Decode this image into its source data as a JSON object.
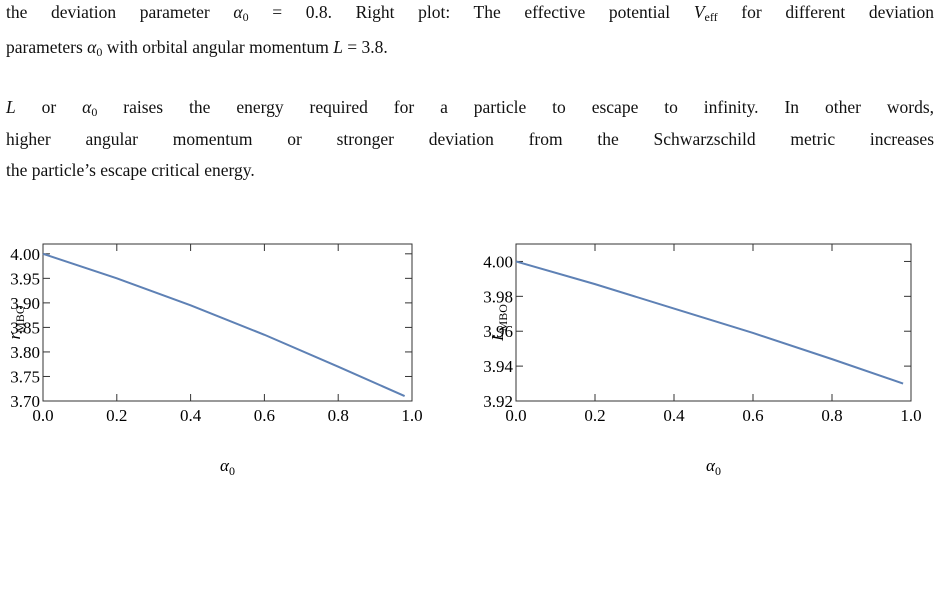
{
  "caption": {
    "lines": [
      [
        "the deviation parameter ",
        "α",
        "0",
        " = 0.8. Right plot: The effective potential ",
        "V",
        "eff",
        " for different deviation"
      ],
      [
        "parameters ",
        "α",
        "0",
        " with orbital angular momentum ",
        "L",
        " = 3.8."
      ]
    ]
  },
  "paragraph": {
    "lines": [
      [
        "L",
        " or ",
        "α",
        "0",
        " raises the energy required for a particle to escape to infinity.  In other words,"
      ],
      [
        "higher angular momentum or stronger deviation from the Schwarzschild metric increases"
      ],
      [
        "the particle’s escape critical energy."
      ]
    ]
  },
  "chart_data": [
    {
      "type": "line",
      "xlabel": [
        "α",
        "0"
      ],
      "ylabel": [
        "r",
        "MBO"
      ],
      "x": [
        0,
        0.2,
        0.4,
        0.6,
        0.8,
        0.98
      ],
      "series": [
        {
          "color": "#5e81b5",
          "values": [
            4.0,
            3.95,
            3.895,
            3.835,
            3.77,
            3.71
          ]
        }
      ],
      "xlim": [
        0,
        1
      ],
      "ylim": [
        3.7,
        4.02
      ],
      "xticks": [
        {
          "value": 0,
          "label": "0.0"
        },
        0.2,
        0.4,
        0.6,
        0.8,
        {
          "value": 1,
          "label": "1.0"
        }
      ],
      "yticks": [
        {
          "value": 3.7,
          "label": "3.70"
        },
        3.75,
        {
          "value": 3.8,
          "label": "3.80"
        },
        3.85,
        {
          "value": 3.9,
          "label": "3.90"
        },
        3.95,
        {
          "value": 4.0,
          "label": "4.00"
        }
      ]
    },
    {
      "type": "line",
      "xlabel": [
        "α",
        "0"
      ],
      "ylabel": [
        "L",
        "MBO"
      ],
      "x": [
        0,
        0.2,
        0.4,
        0.6,
        0.8,
        0.98
      ],
      "series": [
        {
          "color": "#5e81b5",
          "values": [
            4.0,
            3.987,
            3.973,
            3.959,
            3.944,
            3.93
          ]
        }
      ],
      "xlim": [
        0,
        1
      ],
      "ylim": [
        3.92,
        4.01
      ],
      "xticks": [
        {
          "value": 0,
          "label": "0.0"
        },
        0.2,
        0.4,
        0.6,
        0.8,
        {
          "value": 1,
          "label": "1.0"
        }
      ],
      "yticks": [
        3.92,
        3.94,
        3.96,
        3.98,
        {
          "value": 4.0,
          "label": "4.00"
        }
      ]
    }
  ]
}
